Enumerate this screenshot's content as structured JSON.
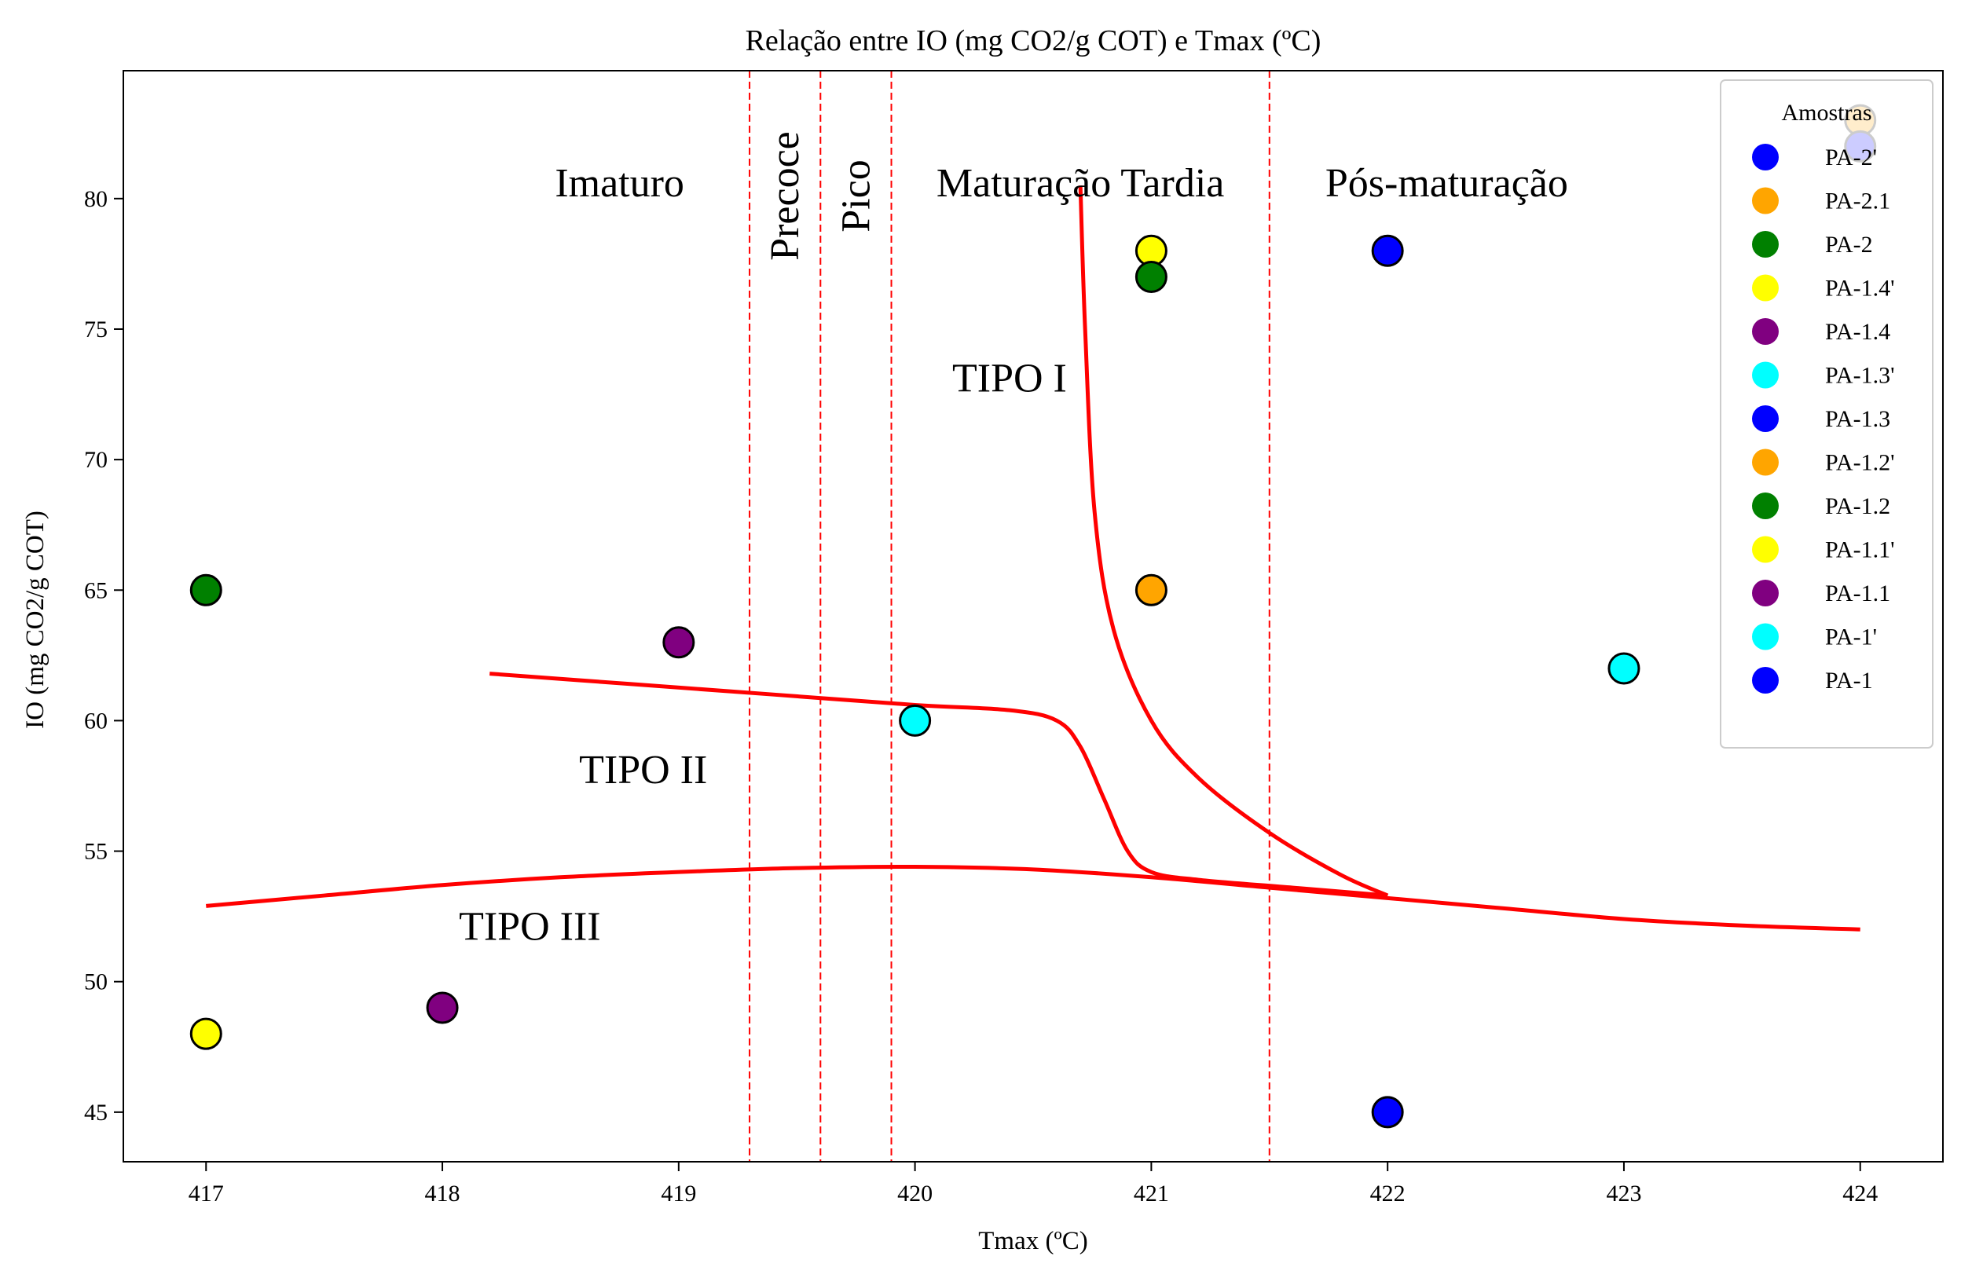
{
  "chart_data": {
    "type": "scatter",
    "title": "Relação entre IO (mg CO2/g COT) e Tmax (ºC)",
    "xlabel": "Tmax (ºC)",
    "ylabel": "IO (mg CO2/g COT)",
    "xlim": [
      416.65,
      424.35
    ],
    "ylim": [
      43.1,
      84.9
    ],
    "xticks": [
      417,
      418,
      419,
      420,
      421,
      422,
      423,
      424
    ],
    "yticks": [
      45,
      50,
      55,
      60,
      65,
      70,
      75,
      80
    ],
    "grid": false,
    "legend": {
      "title": "Amostras",
      "placement": "top-right",
      "entries": [
        {
          "name": "PA-2'",
          "color": "#0000ff"
        },
        {
          "name": "PA-2.1",
          "color": "#ffa500"
        },
        {
          "name": "PA-2",
          "color": "#008000"
        },
        {
          "name": "PA-1.4'",
          "color": "#ffff00"
        },
        {
          "name": "PA-1.4",
          "color": "#800080"
        },
        {
          "name": "PA-1.3'",
          "color": "#00ffff"
        },
        {
          "name": "PA-1.3",
          "color": "#0000ff"
        },
        {
          "name": "PA-1.2'",
          "color": "#ffa500"
        },
        {
          "name": "PA-1.2",
          "color": "#008000"
        },
        {
          "name": "PA-1.1'",
          "color": "#ffff00"
        },
        {
          "name": "PA-1.1",
          "color": "#800080"
        },
        {
          "name": "PA-1'",
          "color": "#00ffff"
        },
        {
          "name": "PA-1",
          "color": "#0000ff"
        }
      ]
    },
    "points": [
      {
        "sample": "PA-1",
        "x": 422,
        "y": 45,
        "color": "#0000ff"
      },
      {
        "sample": "PA-1'",
        "x": 423,
        "y": 62,
        "color": "#00ffff"
      },
      {
        "sample": "PA-1.1",
        "x": 418,
        "y": 49,
        "color": "#800080"
      },
      {
        "sample": "PA-1.1'",
        "x": 417,
        "y": 48,
        "color": "#ffff00"
      },
      {
        "sample": "PA-1.2",
        "x": 417,
        "y": 65,
        "color": "#008000"
      },
      {
        "sample": "PA-1.2'",
        "x": 421,
        "y": 65,
        "color": "#ffa500"
      },
      {
        "sample": "PA-1.3",
        "x": 422,
        "y": 78,
        "color": "#0000ff"
      },
      {
        "sample": "PA-1.3'",
        "x": 420,
        "y": 60,
        "color": "#00ffff"
      },
      {
        "sample": "PA-1.4",
        "x": 419,
        "y": 63,
        "color": "#800080"
      },
      {
        "sample": "PA-1.4'",
        "x": 421,
        "y": 78,
        "color": "#ffff00"
      },
      {
        "sample": "PA-2",
        "x": 421,
        "y": 77,
        "color": "#008000"
      },
      {
        "sample": "PA-2.1",
        "x": 424,
        "y": 83,
        "color": "#ffa500"
      },
      {
        "sample": "PA-2'",
        "x": 424,
        "y": 82,
        "color": "#0000ff"
      }
    ],
    "vlines": [
      419.3,
      419.6,
      419.9,
      421.5
    ],
    "zones": [
      {
        "label": "Imaturo",
        "x": 418.75,
        "y": 80.6,
        "rotated": false
      },
      {
        "label": "Precoce",
        "x": 419.45,
        "y": 80.4,
        "rotated": true
      },
      {
        "label": "Pico",
        "x": 419.75,
        "y": 80.4,
        "rotated": true
      },
      {
        "label": "Maturação Tardia",
        "x": 420.7,
        "y": 80.6,
        "rotated": false
      },
      {
        "label": "Pós-maturação",
        "x": 422.25,
        "y": 80.6,
        "rotated": false
      }
    ],
    "curves": [
      {
        "label": "TIPO I",
        "label_x": 420.4,
        "label_y": 72.6,
        "points": [
          [
            420.7,
            80.5
          ],
          [
            420.72,
            75
          ],
          [
            420.76,
            68
          ],
          [
            420.84,
            63.5
          ],
          [
            421,
            60
          ],
          [
            421.2,
            57.8
          ],
          [
            421.5,
            55.7
          ],
          [
            421.8,
            54.1
          ],
          [
            422,
            53.3
          ]
        ]
      },
      {
        "label": "TIPO II",
        "label_x": 418.85,
        "label_y": 57.6,
        "points": [
          [
            418.2,
            61.8
          ],
          [
            418.8,
            61.4
          ],
          [
            419.4,
            61.0
          ],
          [
            420.0,
            60.6
          ],
          [
            420.4,
            60.4
          ],
          [
            420.6,
            60.0
          ],
          [
            420.7,
            59.0
          ],
          [
            420.8,
            57.0
          ],
          [
            420.9,
            55.0
          ],
          [
            421.0,
            54.2
          ],
          [
            421.2,
            53.9
          ],
          [
            421.6,
            53.6
          ],
          [
            422.0,
            53.3
          ]
        ]
      },
      {
        "label": "TIPO III",
        "label_x": 418.37,
        "label_y": 51.6,
        "points": [
          [
            417.0,
            52.9
          ],
          [
            417.5,
            53.3
          ],
          [
            418.0,
            53.7
          ],
          [
            418.5,
            54.0
          ],
          [
            419.0,
            54.2
          ],
          [
            419.5,
            54.35
          ],
          [
            420.0,
            54.4
          ],
          [
            420.5,
            54.3
          ],
          [
            421.0,
            54.0
          ],
          [
            421.5,
            53.6
          ],
          [
            422.0,
            53.2
          ],
          [
            422.5,
            52.8
          ],
          [
            423.0,
            52.4
          ],
          [
            423.5,
            52.15
          ],
          [
            424.0,
            52.0
          ]
        ]
      }
    ],
    "colors": {
      "curve": "#ff0000",
      "vline": "#ff0000",
      "marker_edge": "#000000"
    }
  }
}
